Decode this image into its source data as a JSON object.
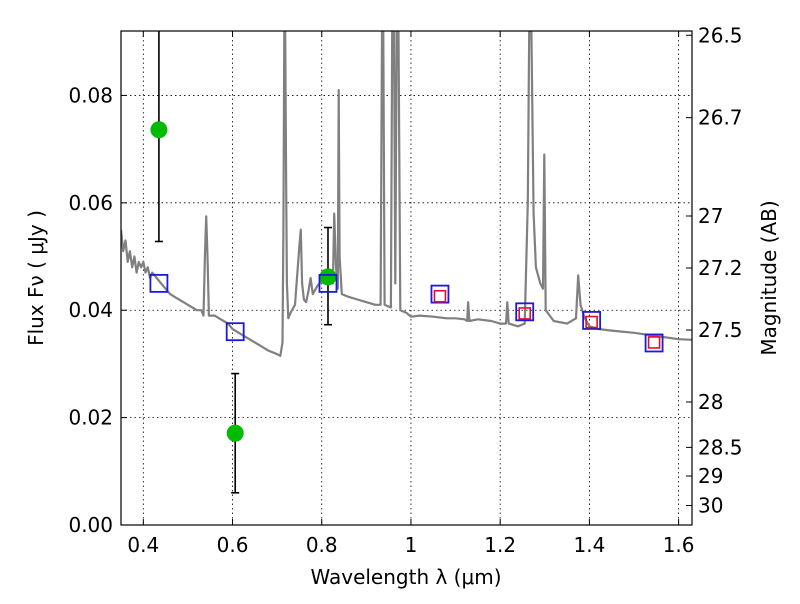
{
  "chart_data": {
    "type": "scatter",
    "title": "",
    "xlabel": "Wavelength  λ (μm)",
    "ylabel": "Flux  Fν  ( μJy )",
    "y2label": "Magnitude (AB)",
    "xlim": [
      0.35,
      1.63
    ],
    "ylim": [
      0.0,
      0.092
    ],
    "grid": true,
    "legend": "none",
    "x_ticks": [
      "0.4",
      "0.6",
      "0.8",
      "1",
      "1.2",
      "1.4",
      "1.6"
    ],
    "x_tick_values": [
      0.4,
      0.6,
      0.8,
      1.0,
      1.2,
      1.4,
      1.6
    ],
    "y_ticks": [
      "0.00",
      "0.02",
      "0.04",
      "0.06",
      "0.08"
    ],
    "y_tick_values": [
      0.0,
      0.02,
      0.04,
      0.06,
      0.08
    ],
    "y2_ticks": [
      "26.5",
      "26.7",
      "27",
      "27.2",
      "27.5",
      "28",
      "28.5",
      "29",
      "30"
    ],
    "y2_tick_values": [
      26.5,
      26.7,
      27.0,
      27.2,
      27.5,
      28.0,
      28.5,
      29.0,
      30.0
    ],
    "colors": {
      "template": "#808080",
      "observed": "#00bb00",
      "model_box": "#1a1adc",
      "model_inner": "#e0102a",
      "errorbar": "#000000"
    },
    "series": [
      {
        "kind": "line",
        "points": [
          [
            0.35,
            0.055
          ],
          [
            0.355,
            0.051
          ],
          [
            0.36,
            0.053
          ],
          [
            0.365,
            0.049
          ],
          [
            0.37,
            0.051
          ],
          [
            0.375,
            0.048
          ],
          [
            0.38,
            0.05
          ],
          [
            0.385,
            0.047
          ],
          [
            0.39,
            0.049
          ],
          [
            0.395,
            0.048
          ],
          [
            0.4,
            0.049
          ],
          [
            0.405,
            0.047
          ],
          [
            0.41,
            0.048
          ],
          [
            0.415,
            0.046
          ],
          [
            0.42,
            0.047
          ],
          [
            0.43,
            0.046
          ],
          [
            0.44,
            0.045
          ],
          [
            0.45,
            0.044
          ],
          [
            0.46,
            0.043
          ],
          [
            0.47,
            0.0425
          ],
          [
            0.48,
            0.042
          ],
          [
            0.49,
            0.0415
          ],
          [
            0.5,
            0.041
          ],
          [
            0.51,
            0.0405
          ],
          [
            0.52,
            0.04
          ],
          [
            0.53,
            0.04
          ],
          [
            0.535,
            0.039
          ],
          [
            0.538,
            0.05
          ],
          [
            0.541,
            0.0575
          ],
          [
            0.544,
            0.05
          ],
          [
            0.547,
            0.039
          ],
          [
            0.56,
            0.039
          ],
          [
            0.57,
            0.0385
          ],
          [
            0.58,
            0.038
          ],
          [
            0.59,
            0.0375
          ],
          [
            0.6,
            0.0365
          ],
          [
            0.62,
            0.0355
          ],
          [
            0.64,
            0.0345
          ],
          [
            0.66,
            0.0335
          ],
          [
            0.68,
            0.0325
          ],
          [
            0.7,
            0.0318
          ],
          [
            0.707,
            0.0315
          ],
          [
            0.712,
            0.034
          ],
          [
            0.714,
            0.055
          ],
          [
            0.716,
            0.092
          ],
          [
            0.718,
            0.092
          ],
          [
            0.72,
            0.065
          ],
          [
            0.722,
            0.045
          ],
          [
            0.725,
            0.0385
          ],
          [
            0.73,
            0.0395
          ],
          [
            0.74,
            0.041
          ],
          [
            0.75,
            0.052
          ],
          [
            0.753,
            0.055
          ],
          [
            0.756,
            0.045
          ],
          [
            0.76,
            0.042
          ],
          [
            0.765,
            0.0415
          ],
          [
            0.77,
            0.0435
          ],
          [
            0.775,
            0.046
          ],
          [
            0.78,
            0.043
          ],
          [
            0.79,
            0.0445
          ],
          [
            0.8,
            0.0455
          ],
          [
            0.82,
            0.046
          ],
          [
            0.825,
            0.045
          ],
          [
            0.828,
            0.058
          ],
          [
            0.832,
            0.048
          ],
          [
            0.836,
            0.044
          ],
          [
            0.838,
            0.081
          ],
          [
            0.84,
            0.05
          ],
          [
            0.845,
            0.043
          ],
          [
            0.86,
            0.0425
          ],
          [
            0.88,
            0.042
          ],
          [
            0.9,
            0.0415
          ],
          [
            0.92,
            0.041
          ],
          [
            0.932,
            0.041
          ],
          [
            0.935,
            0.092
          ],
          [
            0.938,
            0.092
          ],
          [
            0.941,
            0.041
          ],
          [
            0.955,
            0.0405
          ],
          [
            0.958,
            0.092
          ],
          [
            0.962,
            0.092
          ],
          [
            0.965,
            0.045
          ],
          [
            0.968,
            0.092
          ],
          [
            0.972,
            0.092
          ],
          [
            0.976,
            0.04
          ],
          [
            0.99,
            0.0395
          ],
          [
            1.0,
            0.0388
          ],
          [
            1.02,
            0.039
          ],
          [
            1.05,
            0.0388
          ],
          [
            1.08,
            0.0385
          ],
          [
            1.1,
            0.0385
          ],
          [
            1.12,
            0.0383
          ],
          [
            1.126,
            0.038
          ],
          [
            1.128,
            0.0415
          ],
          [
            1.131,
            0.038
          ],
          [
            1.15,
            0.0383
          ],
          [
            1.18,
            0.038
          ],
          [
            1.2,
            0.0375
          ],
          [
            1.213,
            0.0375
          ],
          [
            1.216,
            0.0415
          ],
          [
            1.219,
            0.0375
          ],
          [
            1.24,
            0.037
          ],
          [
            1.255,
            0.0375
          ],
          [
            1.262,
            0.06
          ],
          [
            1.265,
            0.092
          ],
          [
            1.27,
            0.092
          ],
          [
            1.275,
            0.058
          ],
          [
            1.28,
            0.048
          ],
          [
            1.29,
            0.045
          ],
          [
            1.296,
            0.044
          ],
          [
            1.299,
            0.069
          ],
          [
            1.302,
            0.04
          ],
          [
            1.32,
            0.038
          ],
          [
            1.35,
            0.0375
          ],
          [
            1.37,
            0.0385
          ],
          [
            1.375,
            0.0465
          ],
          [
            1.38,
            0.041
          ],
          [
            1.39,
            0.0385
          ],
          [
            1.4,
            0.037
          ],
          [
            1.42,
            0.0365
          ],
          [
            1.45,
            0.0362
          ],
          [
            1.5,
            0.0358
          ],
          [
            1.55,
            0.0352
          ],
          [
            1.6,
            0.0346
          ],
          [
            1.63,
            0.0345
          ]
        ]
      },
      {
        "kind": "observed",
        "points": [
          {
            "x": 0.435,
            "y": 0.0736,
            "ylo": 0.0528,
            "yhi": 0.092
          },
          {
            "x": 0.606,
            "y": 0.0171,
            "ylo": 0.006,
            "yhi": 0.0282
          },
          {
            "x": 0.814,
            "y": 0.0462,
            "ylo": 0.0373,
            "yhi": 0.0554
          }
        ]
      },
      {
        "kind": "model",
        "points": [
          [
            0.435,
            0.045
          ],
          [
            0.606,
            0.036
          ],
          [
            0.814,
            0.045
          ],
          [
            1.065,
            0.043
          ],
          [
            1.255,
            0.0397
          ],
          [
            1.405,
            0.0381
          ],
          [
            1.545,
            0.0339
          ]
        ]
      },
      {
        "kind": "model_inner",
        "points": [
          [
            1.065,
            0.0426
          ],
          [
            1.255,
            0.0394
          ],
          [
            1.405,
            0.0378
          ],
          [
            1.545,
            0.034
          ]
        ]
      }
    ]
  }
}
